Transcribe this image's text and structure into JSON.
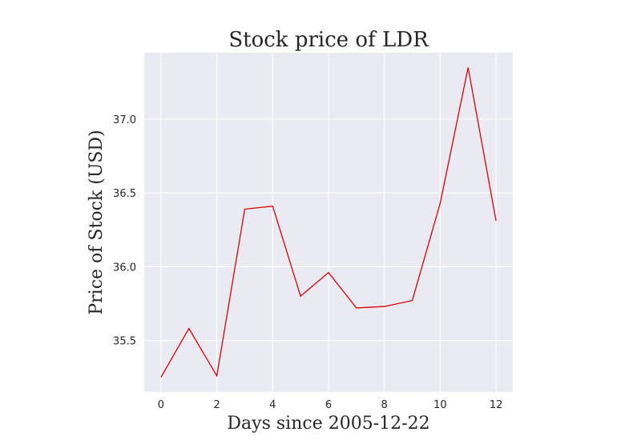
{
  "chart_data": {
    "type": "line",
    "title": "Stock price of LDR",
    "xlabel": "Days since 2005-12-22",
    "ylabel": "Price of Stock (USD)",
    "x": [
      0,
      1,
      2,
      3,
      4,
      5,
      6,
      7,
      8,
      9,
      10,
      11,
      12
    ],
    "series": [
      {
        "values": [
          35.25,
          35.58,
          35.26,
          36.39,
          36.41,
          35.8,
          35.96,
          35.72,
          35.73,
          35.77,
          36.43,
          37.35,
          36.31
        ],
        "color": "#dd0000"
      }
    ],
    "xlim": [
      -0.6,
      12.6
    ],
    "ylim": [
      35.15,
      37.45
    ],
    "xticks": [
      0,
      2,
      4,
      6,
      8,
      10,
      12
    ],
    "xtick_labels": [
      "0",
      "2",
      "4",
      "6",
      "8",
      "10",
      "12"
    ],
    "yticks": [
      35.5,
      36.0,
      36.5,
      37.0
    ],
    "ytick_labels": [
      "35.5",
      "36.0",
      "36.5",
      "37.0"
    ],
    "grid": true,
    "plot_background": "#eaeaf2"
  }
}
